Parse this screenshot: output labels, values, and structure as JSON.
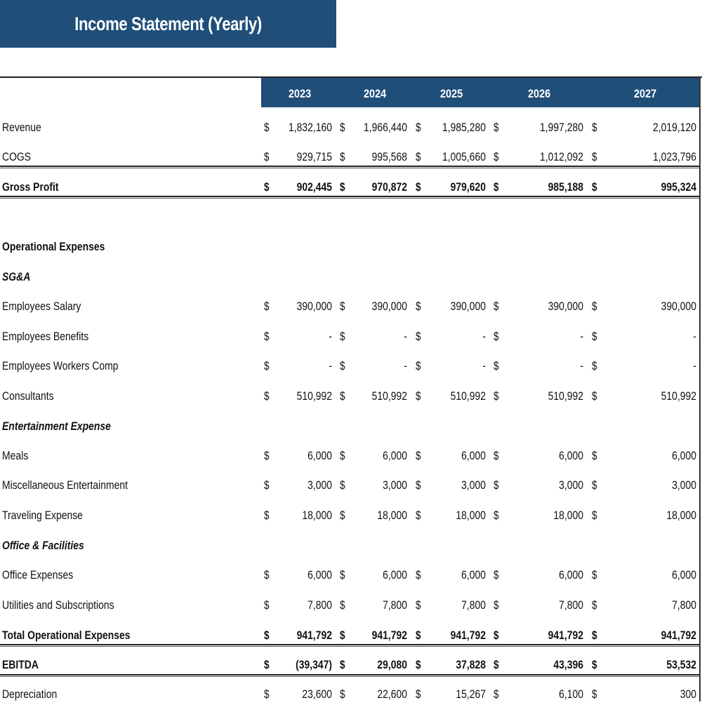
{
  "title": "Income Statement (Yearly)",
  "years": [
    "2023",
    "2024",
    "2025",
    "2026",
    "2027"
  ],
  "currency_symbol": "$",
  "colors": {
    "header_bg": "#1f4e79",
    "header_text": "#ffffff"
  },
  "rows": [
    {
      "label": "Revenue",
      "style": "normal",
      "values": [
        "1,832,160",
        "1,966,440",
        "1,985,280",
        "1,997,280",
        "2,019,120"
      ]
    },
    {
      "label": "COGS",
      "style": "normal",
      "values": [
        "929,715",
        "995,568",
        "1,005,660",
        "1,012,092",
        "1,023,796"
      ]
    },
    {
      "label": "Gross Profit",
      "style": "bold",
      "values": [
        "902,445",
        "970,872",
        "979,620",
        "985,188",
        "995,324"
      ]
    },
    {
      "label": "Operational Expenses",
      "style": "bold",
      "values": null
    },
    {
      "label": "SG&A",
      "style": "italic-bold",
      "values": null
    },
    {
      "label": "Employees Salary",
      "style": "normal",
      "values": [
        "390,000",
        "390,000",
        "390,000",
        "390,000",
        "390,000"
      ]
    },
    {
      "label": "Employees Benefits",
      "style": "normal",
      "values": [
        "-",
        "-",
        "-",
        "-",
        "-"
      ]
    },
    {
      "label": "Employees Workers Comp",
      "style": "normal",
      "values": [
        "-",
        "-",
        "-",
        "-",
        "-"
      ]
    },
    {
      "label": "Consultants",
      "style": "normal",
      "values": [
        "510,992",
        "510,992",
        "510,992",
        "510,992",
        "510,992"
      ]
    },
    {
      "label": "Entertainment Expense",
      "style": "italic-bold",
      "values": null
    },
    {
      "label": "Meals",
      "style": "normal",
      "values": [
        "6,000",
        "6,000",
        "6,000",
        "6,000",
        "6,000"
      ]
    },
    {
      "label": "Miscellaneous Entertainment",
      "style": "normal",
      "values": [
        "3,000",
        "3,000",
        "3,000",
        "3,000",
        "3,000"
      ]
    },
    {
      "label": "Traveling Expense",
      "style": "normal",
      "values": [
        "18,000",
        "18,000",
        "18,000",
        "18,000",
        "18,000"
      ]
    },
    {
      "label": "Office & Facilities",
      "style": "italic-bold",
      "values": null
    },
    {
      "label": "Office Expenses",
      "style": "normal",
      "values": [
        "6,000",
        "6,000",
        "6,000",
        "6,000",
        "6,000"
      ]
    },
    {
      "label": "Utilities and Subscriptions",
      "style": "normal",
      "values": [
        "7,800",
        "7,800",
        "7,800",
        "7,800",
        "7,800"
      ]
    },
    {
      "label": "Total Operational Expenses",
      "style": "bold",
      "values": [
        "941,792",
        "941,792",
        "941,792",
        "941,792",
        "941,792"
      ]
    },
    {
      "label": "EBITDA",
      "style": "bold",
      "values": [
        "(39,347)",
        "29,080",
        "37,828",
        "43,396",
        "53,532"
      ]
    },
    {
      "label": "Depreciation",
      "style": "normal",
      "values": [
        "23,600",
        "22,600",
        "15,267",
        "6,100",
        "300"
      ]
    }
  ]
}
